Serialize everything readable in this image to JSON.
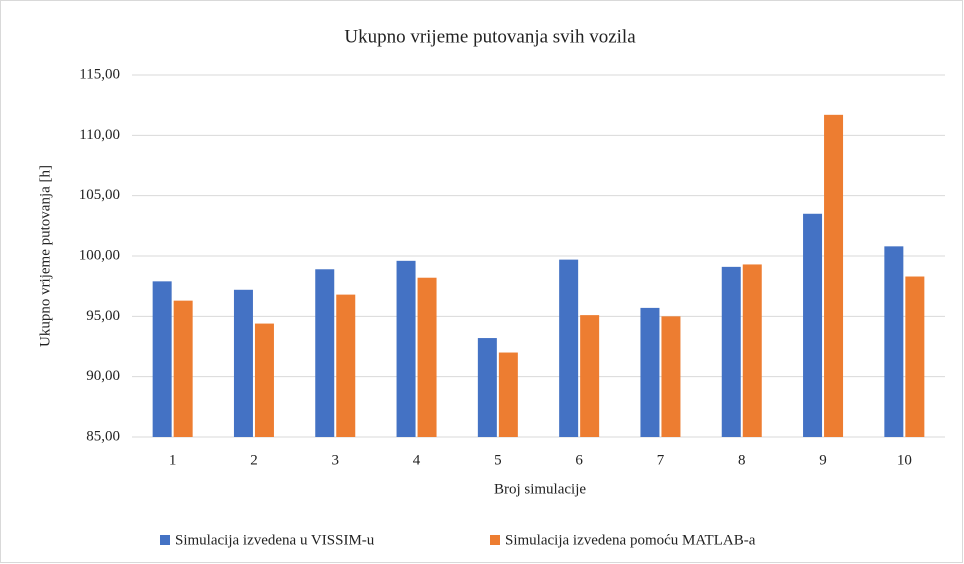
{
  "chart_data": {
    "type": "bar",
    "title": "Ukupno vrijeme putovanja svih vozila",
    "x_label": "Broj simulacije",
    "y_label": "Ukupno vrijeme putovanja [h]",
    "categories": [
      "1",
      "2",
      "3",
      "4",
      "5",
      "6",
      "7",
      "8",
      "9",
      "10"
    ],
    "series": [
      {
        "name": "Simulacija izvedena u VISSIM-u",
        "color": "#4472c4",
        "values": [
          97.9,
          97.2,
          98.9,
          99.6,
          93.2,
          99.7,
          95.7,
          99.1,
          103.5,
          100.8
        ]
      },
      {
        "name": "Simulacija izvedena pomoću MATLAB-a",
        "color": "#ed7d31",
        "values": [
          96.3,
          94.4,
          96.8,
          98.2,
          92.0,
          95.1,
          95.0,
          99.3,
          111.7,
          98.3
        ]
      }
    ],
    "ylim": [
      85,
      115
    ],
    "yticks": [
      {
        "value": 85,
        "label": "85,00"
      },
      {
        "value": 90,
        "label": "90,00"
      },
      {
        "value": 95,
        "label": "95,00"
      },
      {
        "value": 100,
        "label": "100,00"
      },
      {
        "value": 105,
        "label": "105,00"
      },
      {
        "value": 110,
        "label": "110,00"
      },
      {
        "value": 115,
        "label": "115,00"
      }
    ],
    "grid": true,
    "legend": "bottom"
  }
}
